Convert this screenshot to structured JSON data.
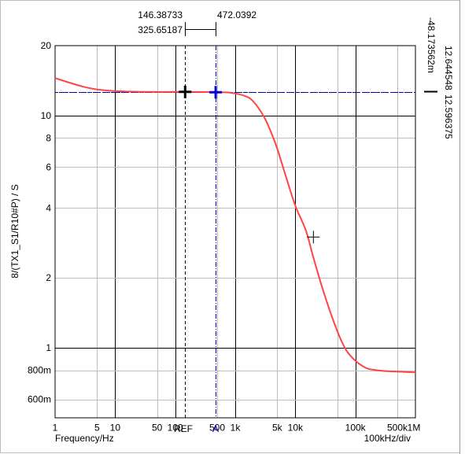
{
  "chart_data": {
    "type": "line",
    "x_scale": "log",
    "y_scale": "log",
    "xlim": [
      1,
      1000000
    ],
    "ylim": [
      0.5,
      20
    ],
    "grid": true,
    "ylabel": "8/(TX1_S1/R10#P)  / S",
    "xlabel": "Frequency/Hz",
    "x_div_label": "100kHz/div",
    "x_ticks": [
      {
        "v": 1,
        "label": "1"
      },
      {
        "v": 5,
        "label": "5"
      },
      {
        "v": 10,
        "label": "10"
      },
      {
        "v": 50,
        "label": "50"
      },
      {
        "v": 100,
        "label": "100"
      },
      {
        "v": 500,
        "label": "500"
      },
      {
        "v": 1000,
        "label": "1k"
      },
      {
        "v": 5000,
        "label": "5k"
      },
      {
        "v": 10000,
        "label": "10k"
      },
      {
        "v": 100000,
        "label": "100k"
      },
      {
        "v": 500000,
        "label": "500k"
      },
      {
        "v": 1000000,
        "label": "1M"
      }
    ],
    "y_ticks": [
      {
        "v": 20,
        "label": "20"
      },
      {
        "v": 10,
        "label": "10"
      },
      {
        "v": 8,
        "label": "8"
      },
      {
        "v": 6,
        "label": "6"
      },
      {
        "v": 4,
        "label": "4"
      },
      {
        "v": 2,
        "label": "2"
      },
      {
        "v": 1,
        "label": "1"
      },
      {
        "v": 0.8,
        "label": "800m"
      },
      {
        "v": 0.6,
        "label": "600m"
      }
    ],
    "series": [
      {
        "color": "#ff4444",
        "x": [
          1,
          2,
          3,
          5,
          8,
          12,
          20,
          40,
          100,
          300,
          700,
          1000,
          1500,
          2000,
          3000,
          4000,
          5000,
          7000,
          10000,
          15000,
          20000,
          30000,
          50000,
          70000,
          100000,
          150000,
          200000,
          300000,
          500000,
          1000000
        ],
        "y": [
          14.5,
          13.7,
          13.3,
          12.95,
          12.8,
          12.72,
          12.67,
          12.64,
          12.64,
          12.63,
          12.58,
          12.45,
          12.1,
          11.5,
          9.9,
          8.4,
          7.2,
          5.45,
          4.1,
          3.2,
          2.45,
          1.72,
          1.18,
          0.98,
          0.88,
          0.82,
          0.805,
          0.795,
          0.79,
          0.785
        ]
      }
    ],
    "cursors": [
      {
        "name": "REF",
        "x": 146.38733,
        "y": 12.644548,
        "color": "#000000"
      },
      {
        "name": "A",
        "x": 472.0392,
        "y": 12.596375,
        "color": "#0000cc"
      }
    ],
    "marker": {
      "x": 20000,
      "y": 3.0
    },
    "readouts": {
      "ref_x": "146.38733",
      "a_x": "472.0392",
      "delta_x": "325.65187",
      "ref_y": "12.644548",
      "a_y": "12.596375",
      "delta_y": "-48.173562m"
    }
  }
}
